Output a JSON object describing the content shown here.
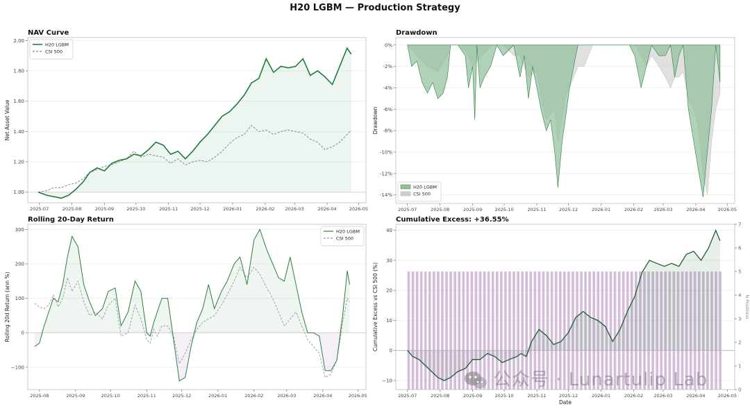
{
  "figure_title": "H20 LGBM — Production Strategy",
  "watermark": "公众号 · Lunartulip Lab",
  "chart_data": [
    {
      "id": "nav",
      "type": "line",
      "title": "NAV Curve",
      "ylabel": "Net Asset Value",
      "xlabel": "",
      "ylim": [
        0.93,
        2.02
      ],
      "yticks": [
        1.0,
        1.2,
        1.4,
        1.6,
        1.8,
        2.0
      ],
      "ytick_labels": [
        "1.00",
        "1.20",
        "1.40",
        "1.60",
        "1.80",
        "2.00"
      ],
      "xlim": [
        "2025-06-20",
        "2026-05-08"
      ],
      "xticks": [
        "2025-07",
        "2025-08",
        "2025-09",
        "2025-10",
        "2025-11",
        "2025-12",
        "2026-01",
        "2026-02",
        "2026-03",
        "2026-04",
        "2026-05"
      ],
      "legend": "top-left",
      "grid": true,
      "series": [
        {
          "name": "H20 LGBM",
          "color": "#1e7b3a",
          "style": "solid",
          "x": [
            "2025-06-30",
            "2025-07-08",
            "2025-07-15",
            "2025-07-22",
            "2025-07-29",
            "2025-08-05",
            "2025-08-12",
            "2025-08-18",
            "2025-08-25",
            "2025-09-01",
            "2025-09-08",
            "2025-09-15",
            "2025-09-22",
            "2025-09-29",
            "2025-10-06",
            "2025-10-13",
            "2025-10-20",
            "2025-10-27",
            "2025-11-03",
            "2025-11-10",
            "2025-11-17",
            "2025-11-24",
            "2025-12-01",
            "2025-12-08",
            "2025-12-15",
            "2025-12-22",
            "2025-12-29",
            "2026-01-05",
            "2026-01-12",
            "2026-01-19",
            "2026-01-26",
            "2026-02-02",
            "2026-02-09",
            "2026-02-16",
            "2026-02-23",
            "2026-03-02",
            "2026-03-09",
            "2026-03-16",
            "2026-03-23",
            "2026-03-30",
            "2026-04-06",
            "2026-04-13",
            "2026-04-20",
            "2026-04-24"
          ],
          "values": [
            1.0,
            0.98,
            0.97,
            0.96,
            0.98,
            1.02,
            1.07,
            1.13,
            1.16,
            1.14,
            1.19,
            1.21,
            1.22,
            1.25,
            1.24,
            1.28,
            1.33,
            1.31,
            1.25,
            1.27,
            1.22,
            1.27,
            1.33,
            1.38,
            1.44,
            1.5,
            1.53,
            1.58,
            1.64,
            1.72,
            1.75,
            1.88,
            1.79,
            1.83,
            1.82,
            1.83,
            1.88,
            1.77,
            1.8,
            1.76,
            1.71,
            1.83,
            1.95,
            1.91
          ]
        },
        {
          "name": "CSI 500",
          "color": "#888888",
          "style": "dashed",
          "x": [
            "2025-06-30",
            "2025-07-08",
            "2025-07-15",
            "2025-07-22",
            "2025-07-29",
            "2025-08-05",
            "2025-08-12",
            "2025-08-18",
            "2025-08-25",
            "2025-09-01",
            "2025-09-08",
            "2025-09-15",
            "2025-09-22",
            "2025-09-29",
            "2025-10-06",
            "2025-10-13",
            "2025-10-20",
            "2025-10-27",
            "2025-11-03",
            "2025-11-10",
            "2025-11-17",
            "2025-11-24",
            "2025-12-01",
            "2025-12-08",
            "2025-12-15",
            "2025-12-22",
            "2025-12-29",
            "2026-01-05",
            "2026-01-12",
            "2026-01-19",
            "2026-01-26",
            "2026-02-02",
            "2026-02-09",
            "2026-02-16",
            "2026-02-23",
            "2026-03-02",
            "2026-03-09",
            "2026-03-16",
            "2026-03-23",
            "2026-03-30",
            "2026-04-06",
            "2026-04-13",
            "2026-04-20",
            "2026-04-24"
          ],
          "values": [
            1.0,
            1.01,
            1.03,
            1.03,
            1.05,
            1.06,
            1.09,
            1.13,
            1.15,
            1.17,
            1.18,
            1.2,
            1.22,
            1.27,
            1.23,
            1.25,
            1.24,
            1.23,
            1.19,
            1.22,
            1.18,
            1.2,
            1.21,
            1.2,
            1.23,
            1.27,
            1.32,
            1.36,
            1.38,
            1.44,
            1.4,
            1.41,
            1.38,
            1.4,
            1.41,
            1.4,
            1.39,
            1.35,
            1.33,
            1.28,
            1.3,
            1.33,
            1.38,
            1.41
          ]
        }
      ]
    },
    {
      "id": "drawdown",
      "type": "area",
      "title": "Drawdown",
      "ylabel": "Drawdown",
      "xlabel": "",
      "ylim": [
        -14.8,
        0.7
      ],
      "yticks": [
        0,
        -2,
        -4,
        -6,
        -8,
        -10,
        -12,
        -14
      ],
      "ytick_labels": [
        "0%",
        "-2%",
        "-4%",
        "-6%",
        "-8%",
        "-10%",
        "-12%",
        "-14%"
      ],
      "xlim": [
        "2025-06-20",
        "2026-05-08"
      ],
      "xticks": [
        "2025-07",
        "2025-08",
        "2025-09",
        "2025-10",
        "2025-11",
        "2025-12",
        "2026-01",
        "2026-02",
        "2026-03",
        "2026-04",
        "2026-05"
      ],
      "legend": "bottom-left",
      "grid": true,
      "series": [
        {
          "name": "H20 LGBM",
          "color": "#8fbf9a",
          "x": [
            "2025-07-01",
            "2025-07-05",
            "2025-07-10",
            "2025-07-15",
            "2025-07-20",
            "2025-07-25",
            "2025-07-30",
            "2025-08-04",
            "2025-08-08",
            "2025-08-11",
            "2025-08-18",
            "2025-08-25",
            "2025-08-28",
            "2025-09-01",
            "2025-09-03",
            "2025-09-05",
            "2025-09-08",
            "2025-09-12",
            "2025-09-18",
            "2025-09-24",
            "2025-09-30",
            "2025-10-10",
            "2025-10-16",
            "2025-10-20",
            "2025-10-24",
            "2025-10-28",
            "2025-11-01",
            "2025-11-05",
            "2025-11-10",
            "2025-11-14",
            "2025-11-18",
            "2025-11-21",
            "2025-11-25",
            "2025-11-28",
            "2025-12-02",
            "2025-12-06",
            "2025-12-10",
            "2025-12-16",
            "2025-12-24",
            "2026-01-05",
            "2026-01-15",
            "2026-01-28",
            "2026-02-02",
            "2026-02-04",
            "2026-02-08",
            "2026-02-13",
            "2026-02-18",
            "2026-02-25",
            "2026-03-03",
            "2026-03-08",
            "2026-03-12",
            "2026-03-16",
            "2026-03-20",
            "2026-03-25",
            "2026-03-30",
            "2026-04-04",
            "2026-04-08",
            "2026-04-12",
            "2026-04-16",
            "2026-04-20",
            "2026-04-24"
          ],
          "values": [
            0,
            -2,
            -1.5,
            -3.5,
            -4.5,
            -3.5,
            -5,
            -4.5,
            -3,
            0,
            0,
            -1,
            -4,
            -2,
            -7,
            0,
            -4,
            -3,
            -2,
            0,
            -1,
            0,
            -3,
            -1,
            -5,
            -2,
            -4,
            -6,
            -8,
            -7,
            -10,
            -13.3,
            -9,
            -7,
            -4,
            -2,
            0,
            0,
            0,
            0,
            0,
            0,
            -1,
            -2,
            -4,
            -2,
            0,
            -1,
            -1,
            0,
            -3,
            -1,
            0,
            -6,
            -9,
            -12,
            -14.2,
            -10,
            -6,
            0,
            -3.5
          ]
        },
        {
          "name": "CSI 500",
          "color": "#cfcfcf",
          "x": [
            "2025-07-01",
            "2025-07-10",
            "2025-07-20",
            "2025-07-30",
            "2025-08-08",
            "2025-08-11",
            "2025-08-20",
            "2025-08-28",
            "2025-09-01",
            "2025-09-10",
            "2025-09-20",
            "2025-09-30",
            "2025-10-10",
            "2025-10-16",
            "2025-10-24",
            "2025-11-01",
            "2025-11-05",
            "2025-11-10",
            "2025-11-18",
            "2025-11-21",
            "2025-11-28",
            "2025-12-06",
            "2025-12-10",
            "2025-12-16",
            "2025-12-24",
            "2026-01-05",
            "2026-01-15",
            "2026-01-28",
            "2026-02-02",
            "2026-02-08",
            "2026-02-13",
            "2026-02-18",
            "2026-02-25",
            "2026-03-03",
            "2026-03-08",
            "2026-03-12",
            "2026-03-16",
            "2026-03-20",
            "2026-03-25",
            "2026-03-30",
            "2026-04-04",
            "2026-04-08",
            "2026-04-12",
            "2026-04-16",
            "2026-04-20",
            "2026-04-24"
          ],
          "values": [
            0,
            -1,
            -2,
            -2.5,
            -1,
            0,
            0,
            -1,
            -2,
            -1,
            0,
            0,
            -1,
            -1,
            -3,
            -2.5,
            -5,
            -7,
            -6,
            -9,
            -5,
            -3,
            -2,
            -2,
            0,
            0,
            0,
            0,
            0,
            -1,
            -2,
            -1,
            -2,
            -3,
            -4,
            -3,
            -3,
            -2.5,
            -5,
            -6,
            -8,
            -12,
            -14,
            -9,
            -6,
            -4.5
          ]
        }
      ]
    },
    {
      "id": "rolling",
      "type": "line",
      "title": "Rolling 20-Day Return",
      "ylabel": "Rolling 20d Return (ann %)",
      "xlabel": "",
      "ylim": [
        -165,
        315
      ],
      "yticks": [
        -100,
        0,
        100,
        200,
        300
      ],
      "ytick_labels": [
        "−100",
        "0",
        "100",
        "200",
        "300"
      ],
      "xlim": [
        "2025-07-22",
        "2026-05-08"
      ],
      "xticks": [
        "2025-08",
        "2025-09",
        "2025-10",
        "2025-11",
        "2025-12",
        "2026-01",
        "2026-02",
        "2026-03",
        "2026-04",
        "2026-05"
      ],
      "legend": "top-right",
      "grid": true,
      "series": [
        {
          "name": "H20 LGBM",
          "color": "#2e7d3e",
          "style": "solid",
          "x": [
            "2025-07-28",
            "2025-08-01",
            "2025-08-05",
            "2025-08-09",
            "2025-08-13",
            "2025-08-17",
            "2025-08-21",
            "2025-08-25",
            "2025-08-29",
            "2025-09-03",
            "2025-09-08",
            "2025-09-13",
            "2025-09-18",
            "2025-09-24",
            "2025-09-29",
            "2025-10-05",
            "2025-10-10",
            "2025-10-16",
            "2025-10-22",
            "2025-10-27",
            "2025-11-01",
            "2025-11-04",
            "2025-11-07",
            "2025-11-10",
            "2025-11-14",
            "2025-11-19",
            "2025-11-24",
            "2025-11-29",
            "2025-12-04",
            "2025-12-09",
            "2025-12-14",
            "2025-12-19",
            "2025-12-24",
            "2025-12-29",
            "2026-01-04",
            "2026-01-09",
            "2026-01-15",
            "2026-01-20",
            "2026-01-26",
            "2026-02-01",
            "2026-02-06",
            "2026-02-12",
            "2026-02-17",
            "2026-02-22",
            "2026-02-27",
            "2026-03-04",
            "2026-03-09",
            "2026-03-14",
            "2026-03-19",
            "2026-03-24",
            "2026-03-29",
            "2026-04-03",
            "2026-04-08",
            "2026-04-13",
            "2026-04-18",
            "2026-04-22",
            "2026-04-24"
          ],
          "values": [
            -40,
            -30,
            20,
            60,
            100,
            90,
            140,
            220,
            280,
            250,
            140,
            90,
            50,
            70,
            120,
            130,
            20,
            60,
            150,
            120,
            0,
            -10,
            30,
            60,
            100,
            100,
            -20,
            -140,
            -130,
            -40,
            30,
            70,
            140,
            70,
            120,
            150,
            200,
            220,
            140,
            270,
            300,
            240,
            200,
            160,
            150,
            220,
            140,
            60,
            0,
            0,
            -10,
            -110,
            -110,
            -80,
            50,
            180,
            140
          ]
        },
        {
          "name": "CSI 500",
          "color": "#999999",
          "style": "dashed",
          "x": [
            "2025-07-28",
            "2025-08-01",
            "2025-08-05",
            "2025-08-09",
            "2025-08-13",
            "2025-08-17",
            "2025-08-21",
            "2025-08-25",
            "2025-08-29",
            "2025-09-03",
            "2025-09-08",
            "2025-09-13",
            "2025-09-18",
            "2025-09-24",
            "2025-09-29",
            "2025-10-05",
            "2025-10-10",
            "2025-10-16",
            "2025-10-22",
            "2025-10-27",
            "2025-11-01",
            "2025-11-04",
            "2025-11-07",
            "2025-11-10",
            "2025-11-14",
            "2025-11-19",
            "2025-11-24",
            "2025-11-29",
            "2025-12-04",
            "2025-12-09",
            "2025-12-14",
            "2025-12-19",
            "2025-12-24",
            "2025-12-29",
            "2026-01-04",
            "2026-01-09",
            "2026-01-15",
            "2026-01-20",
            "2026-01-26",
            "2026-02-01",
            "2026-02-06",
            "2026-02-12",
            "2026-02-17",
            "2026-02-22",
            "2026-02-27",
            "2026-03-04",
            "2026-03-09",
            "2026-03-14",
            "2026-03-19",
            "2026-03-24",
            "2026-03-29",
            "2026-04-03",
            "2026-04-08",
            "2026-04-13",
            "2026-04-18",
            "2026-04-22",
            "2026-04-24"
          ],
          "values": [
            85,
            75,
            70,
            80,
            110,
            75,
            100,
            160,
            120,
            150,
            90,
            50,
            60,
            40,
            80,
            100,
            -10,
            0,
            80,
            40,
            -20,
            -30,
            10,
            -10,
            20,
            20,
            -10,
            -90,
            -60,
            -20,
            10,
            30,
            40,
            50,
            80,
            110,
            150,
            190,
            160,
            190,
            170,
            130,
            100,
            60,
            20,
            40,
            60,
            20,
            -20,
            -40,
            -60,
            -130,
            -120,
            -80,
            30,
            100,
            90
          ]
        }
      ]
    },
    {
      "id": "excess",
      "type": "line",
      "title": "Cumulative Excess: +36.55%",
      "ylabel": "Cumulative Excess vs CSI 500 (%)",
      "ylabel_right": "N Positions",
      "xlabel": "Date",
      "ylim": [
        -13,
        42
      ],
      "yticks": [
        -10,
        0,
        10,
        20,
        30,
        40
      ],
      "ytick_labels": [
        "−10",
        "0",
        "10",
        "20",
        "30",
        "40"
      ],
      "ylim_right": [
        0,
        7
      ],
      "yticks_right": [
        0,
        1,
        2,
        3,
        4,
        5,
        6,
        7
      ],
      "xlim": [
        "2025-06-20",
        "2026-05-08"
      ],
      "xticks": [
        "2025-07",
        "2025-08",
        "2025-09",
        "2025-10",
        "2025-11",
        "2025-12",
        "2026-01",
        "2026-02",
        "2026-03",
        "2026-04",
        "2026-05"
      ],
      "grid": true,
      "positions_bars": {
        "color": "#c7a6cf",
        "value": 5,
        "every_days": 4,
        "from": "2025-07-01",
        "to": "2026-04-24"
      },
      "series": [
        {
          "name": "Cumulative Excess",
          "color": "#1e5e33",
          "x": [
            "2025-07-01",
            "2025-07-06",
            "2025-07-12",
            "2025-07-18",
            "2025-07-24",
            "2025-07-30",
            "2025-08-05",
            "2025-08-11",
            "2025-08-18",
            "2025-08-25",
            "2025-09-01",
            "2025-09-08",
            "2025-09-15",
            "2025-09-22",
            "2025-09-29",
            "2025-10-06",
            "2025-10-13",
            "2025-10-17",
            "2025-10-22",
            "2025-10-27",
            "2025-11-03",
            "2025-11-10",
            "2025-11-17",
            "2025-11-24",
            "2025-12-01",
            "2025-12-08",
            "2025-12-15",
            "2025-12-22",
            "2025-12-29",
            "2026-01-05",
            "2026-01-12",
            "2026-01-19",
            "2026-01-26",
            "2026-02-02",
            "2026-02-09",
            "2026-02-16",
            "2026-02-23",
            "2026-03-02",
            "2026-03-09",
            "2026-03-16",
            "2026-03-23",
            "2026-03-30",
            "2026-04-06",
            "2026-04-13",
            "2026-04-20",
            "2026-04-24"
          ],
          "values": [
            0,
            -2,
            -3,
            -5,
            -7,
            -9,
            -10,
            -9,
            -7,
            -6,
            -3,
            -3,
            -1,
            -2,
            -4,
            -3,
            -2,
            -1,
            -2,
            3,
            7,
            5,
            2,
            3,
            6,
            11,
            13,
            11,
            10,
            8,
            3,
            7,
            13,
            18,
            26,
            30,
            29,
            28,
            29,
            28,
            32,
            33,
            30,
            34,
            40,
            36.55
          ]
        }
      ]
    }
  ]
}
